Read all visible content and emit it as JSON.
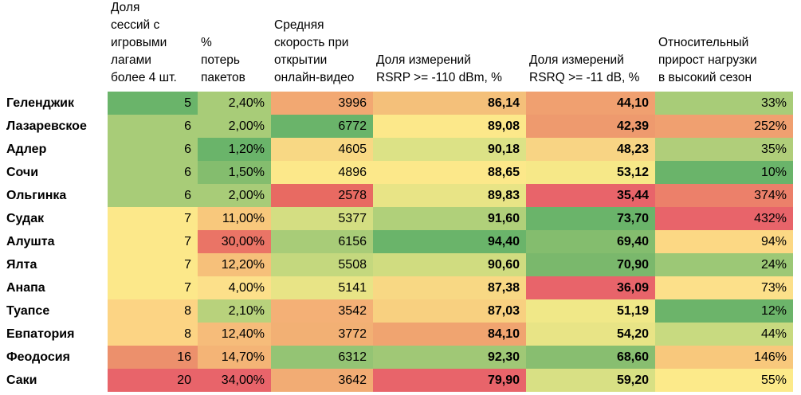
{
  "table": {
    "headers": [
      "",
      "Доля\nсессий с\nигровыми\nлагами\nболее 4 шт.",
      "%\nпотерь\nпакетов",
      "Средняя\nскорость при\nоткрытии\nонлайн-видео",
      "Доля измерений\nRSRP >= -110 dBm, %",
      "Доля измерений\nRSRQ >= -11 dB, %",
      "Относительный\nприрост нагрузки\nв высокий сезон"
    ],
    "rows": [
      [
        "Геленджик",
        "5",
        "2,40%",
        "3996",
        "86,14",
        "44,10",
        "33%"
      ],
      [
        "Лазаревское",
        "6",
        "2,00%",
        "6772",
        "89,08",
        "42,39",
        "252%"
      ],
      [
        "Адлер",
        "6",
        "1,20%",
        "4605",
        "90,18",
        "48,23",
        "35%"
      ],
      [
        "Сочи",
        "6",
        "1,50%",
        "4896",
        "88,65",
        "53,12",
        "10%"
      ],
      [
        "Ольгинка",
        "6",
        "2,00%",
        "2578",
        "89,83",
        "35,44",
        "374%"
      ],
      [
        "Судак",
        "7",
        "11,00%",
        "5377",
        "91,60",
        "73,70",
        "432%"
      ],
      [
        "Алушта",
        "7",
        "30,00%",
        "6156",
        "94,40",
        "69,40",
        "94%"
      ],
      [
        "Ялта",
        "7",
        "12,20%",
        "5508",
        "90,60",
        "70,90",
        "24%"
      ],
      [
        "Анапа",
        "7",
        "4,00%",
        "5141",
        "87,38",
        "36,09",
        "73%"
      ],
      [
        "Туапсе",
        "8",
        "2,10%",
        "3542",
        "87,03",
        "51,19",
        "12%"
      ],
      [
        "Евпатория",
        "8",
        "12,40%",
        "3772",
        "84,10",
        "54,20",
        "44%"
      ],
      [
        "Феодосия",
        "16",
        "14,70%",
        "6312",
        "92,30",
        "68,60",
        "146%"
      ],
      [
        "Саки",
        "20",
        "34,00%",
        "3642",
        "79,90",
        "59,20",
        "55%"
      ]
    ],
    "cell_colors": [
      [
        "#6ab46a",
        "#a8cc78",
        "#f2a872",
        "#f4c07a",
        "#f0a070",
        "#a8cc78"
      ],
      [
        "#a8cc78",
        "#a8cc78",
        "#6ab46a",
        "#fce88a",
        "#ee9a6e",
        "#f0a070"
      ],
      [
        "#a8cc78",
        "#6ab46a",
        "#f8d884",
        "#dce286",
        "#f8d484",
        "#b0ce7a"
      ],
      [
        "#a8cc78",
        "#84bd6e",
        "#fce88a",
        "#fce88a",
        "#f6e888",
        "#6ab46a"
      ],
      [
        "#a8cc78",
        "#a8cc78",
        "#e86a62",
        "#e8e486",
        "#e8646a",
        "#ec806a"
      ],
      [
        "#fce88a",
        "#f8c87c",
        "#d4de82",
        "#b0d07a",
        "#6ab46a",
        "#e8646a"
      ],
      [
        "#fce88a",
        "#ea7466",
        "#a8cc78",
        "#6ab46a",
        "#84bd6e",
        "#fcd884"
      ],
      [
        "#fce88a",
        "#f6c07a",
        "#c4d87e",
        "#d0dc80",
        "#7ab86c",
        "#9cc876"
      ],
      [
        "#fce88a",
        "#fce08a",
        "#e8e486",
        "#f8d884",
        "#e8646a",
        "#fce08a"
      ],
      [
        "#fcd484",
        "#b8d27c",
        "#f4b076",
        "#f8d080",
        "#f0e888",
        "#6cb46a"
      ],
      [
        "#fcd484",
        "#f6bc7a",
        "#f2b074",
        "#f0a470",
        "#e8e486",
        "#c8da80"
      ],
      [
        "#ec906c",
        "#f4b476",
        "#94c474",
        "#a0c876",
        "#88be70",
        "#f8c87c"
      ],
      [
        "#e8646a",
        "#e8646a",
        "#f2ac74",
        "#e8646a",
        "#d8e084",
        "#fcea8a"
      ]
    ]
  }
}
